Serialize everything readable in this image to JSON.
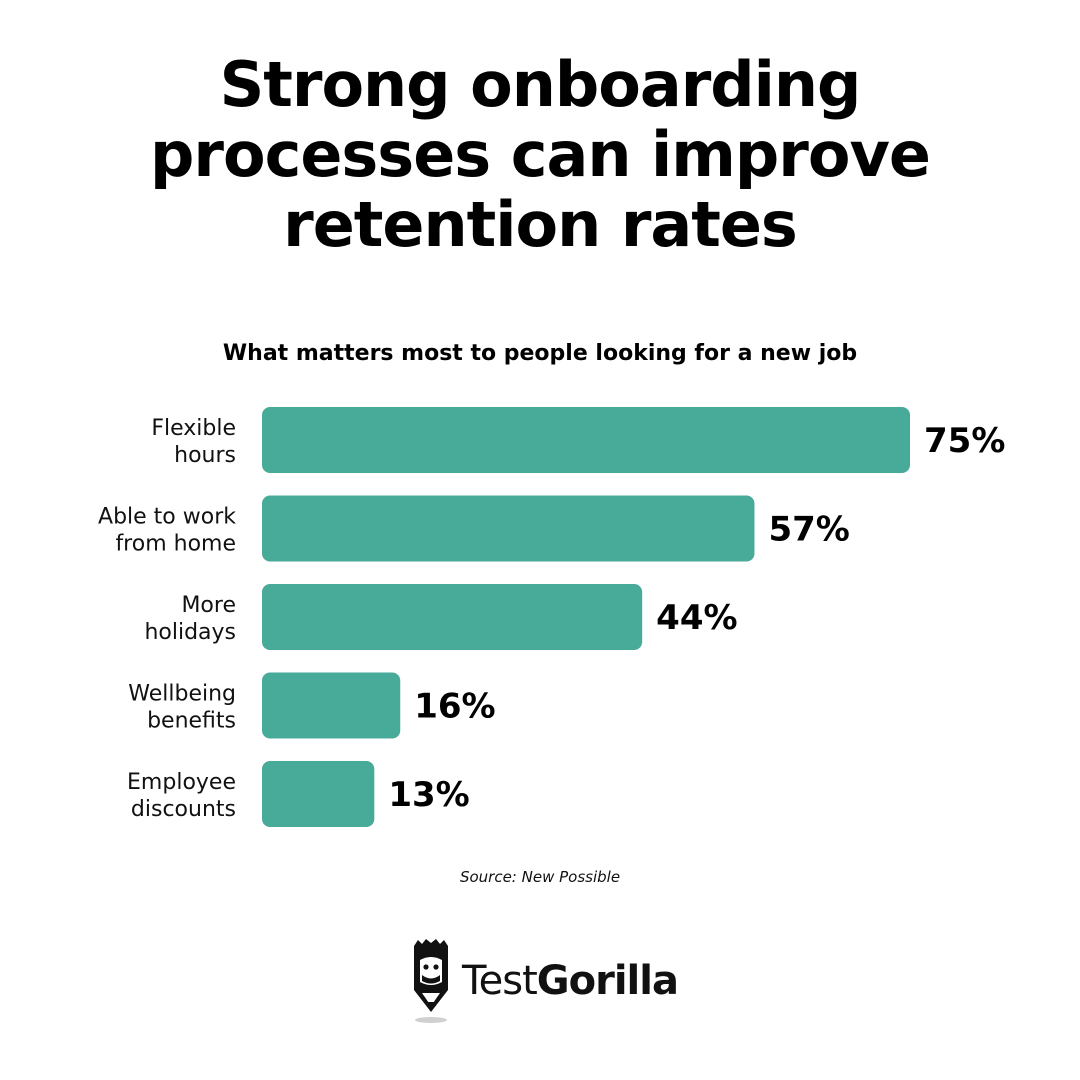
{
  "title_lines": [
    "Strong onboarding",
    "processes can improve",
    "retention rates"
  ],
  "chart_data": {
    "type": "bar",
    "orientation": "horizontal",
    "title": "What matters most to people looking for a new job",
    "categories": [
      [
        "Flexible",
        "hours"
      ],
      [
        "Able to work",
        "from home"
      ],
      [
        "More",
        "holidays"
      ],
      [
        "Wellbeing",
        "benefits"
      ],
      [
        "Employee",
        "discounts"
      ]
    ],
    "values": [
      75,
      57,
      44,
      16,
      13
    ],
    "value_labels": [
      "75%",
      "57%",
      "44%",
      "16%",
      "13%"
    ],
    "unit": "%",
    "xlim": [
      0,
      75
    ],
    "bar_color": "#48AA98",
    "grid": false,
    "legend": false
  },
  "source": "Source: New Possible",
  "brand": {
    "light": "Test",
    "bold": "Gorilla",
    "icon": "gorilla-pencil-icon"
  }
}
